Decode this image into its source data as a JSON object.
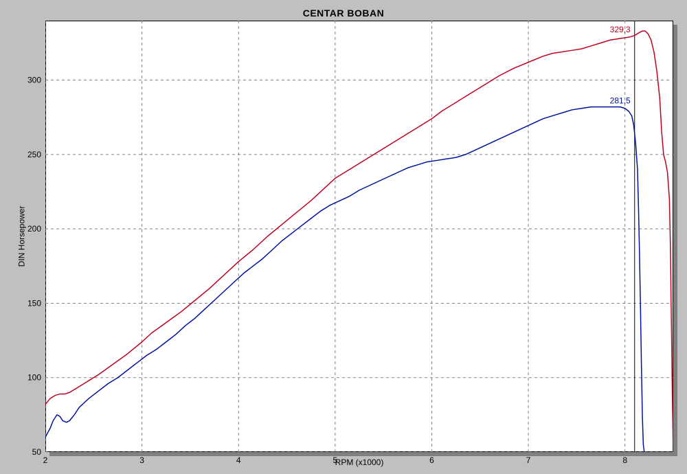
{
  "chart": {
    "type": "line",
    "title": "CENTAR BOBAN",
    "xlabel": "RPM (x1000)",
    "ylabel": "DIN Horsepower",
    "title_fontsize": 14,
    "label_fontsize": 12,
    "tick_fontsize": 12,
    "background_color": "#ffffff",
    "page_background": "#c0c0c0",
    "border_color": "#000000",
    "shadow_color": "#808080",
    "grid_color": "#808080",
    "grid_dash": "4 4",
    "minor_ticks": false,
    "xlim": [
      2,
      8.5
    ],
    "ylim": [
      50,
      340
    ],
    "xticks": [
      2,
      3,
      4,
      5,
      6,
      7,
      8
    ],
    "yticks": [
      50,
      100,
      150,
      200,
      250,
      300
    ],
    "marker_x": 8.1,
    "marker_color": "#000000",
    "series": [
      {
        "name": "run_red",
        "color": "#c00020",
        "line_width": 1.5,
        "peak_label": "329,3",
        "peak_label_color": "#c00020",
        "peak_label_xy": [
          7.95,
          329.3
        ],
        "data": [
          [
            2.0,
            82
          ],
          [
            2.05,
            86
          ],
          [
            2.1,
            88
          ],
          [
            2.15,
            89
          ],
          [
            2.2,
            89
          ],
          [
            2.25,
            90
          ],
          [
            2.35,
            94
          ],
          [
            2.45,
            98
          ],
          [
            2.55,
            102
          ],
          [
            2.7,
            109
          ],
          [
            2.85,
            116
          ],
          [
            3.0,
            124
          ],
          [
            3.1,
            130
          ],
          [
            3.25,
            137
          ],
          [
            3.4,
            144
          ],
          [
            3.55,
            152
          ],
          [
            3.7,
            160
          ],
          [
            3.85,
            169
          ],
          [
            4.0,
            178
          ],
          [
            4.15,
            186
          ],
          [
            4.3,
            195
          ],
          [
            4.45,
            203
          ],
          [
            4.6,
            211
          ],
          [
            4.75,
            219
          ],
          [
            4.9,
            228
          ],
          [
            5.0,
            234
          ],
          [
            5.1,
            238
          ],
          [
            5.25,
            244
          ],
          [
            5.4,
            250
          ],
          [
            5.55,
            256
          ],
          [
            5.7,
            262
          ],
          [
            5.85,
            268
          ],
          [
            6.0,
            274
          ],
          [
            6.1,
            279
          ],
          [
            6.25,
            285
          ],
          [
            6.4,
            291
          ],
          [
            6.55,
            297
          ],
          [
            6.7,
            303
          ],
          [
            6.85,
            308
          ],
          [
            7.0,
            312
          ],
          [
            7.15,
            316
          ],
          [
            7.25,
            318
          ],
          [
            7.35,
            319
          ],
          [
            7.45,
            320
          ],
          [
            7.55,
            321
          ],
          [
            7.65,
            323
          ],
          [
            7.75,
            325
          ],
          [
            7.85,
            327
          ],
          [
            7.95,
            328
          ],
          [
            8.05,
            329
          ],
          [
            8.1,
            330
          ],
          [
            8.15,
            332
          ],
          [
            8.18,
            333
          ],
          [
            8.21,
            333
          ],
          [
            8.24,
            331
          ],
          [
            8.27,
            327
          ],
          [
            8.3,
            319
          ],
          [
            8.33,
            306
          ],
          [
            8.36,
            288
          ],
          [
            8.38,
            265
          ],
          [
            8.4,
            250
          ],
          [
            8.42,
            245
          ],
          [
            8.44,
            238
          ],
          [
            8.46,
            220
          ],
          [
            8.47,
            190
          ],
          [
            8.48,
            140
          ],
          [
            8.49,
            90
          ],
          [
            8.5,
            50
          ]
        ]
      },
      {
        "name": "run_blue",
        "color": "#0010a0",
        "line_width": 1.5,
        "peak_label": "281,5",
        "peak_label_color": "#0010a0",
        "peak_label_xy": [
          7.95,
          281.5
        ],
        "data": [
          [
            2.0,
            60
          ],
          [
            2.05,
            66
          ],
          [
            2.08,
            71
          ],
          [
            2.12,
            75
          ],
          [
            2.15,
            74
          ],
          [
            2.18,
            71
          ],
          [
            2.22,
            70
          ],
          [
            2.25,
            71
          ],
          [
            2.3,
            75
          ],
          [
            2.35,
            80
          ],
          [
            2.45,
            86
          ],
          [
            2.55,
            91
          ],
          [
            2.65,
            96
          ],
          [
            2.75,
            100
          ],
          [
            2.85,
            105
          ],
          [
            2.95,
            110
          ],
          [
            3.05,
            115
          ],
          [
            3.15,
            119
          ],
          [
            3.25,
            124
          ],
          [
            3.35,
            129
          ],
          [
            3.45,
            135
          ],
          [
            3.55,
            140
          ],
          [
            3.65,
            146
          ],
          [
            3.75,
            152
          ],
          [
            3.85,
            158
          ],
          [
            3.95,
            164
          ],
          [
            4.05,
            170
          ],
          [
            4.15,
            175
          ],
          [
            4.25,
            180
          ],
          [
            4.35,
            186
          ],
          [
            4.45,
            192
          ],
          [
            4.55,
            197
          ],
          [
            4.65,
            202
          ],
          [
            4.75,
            207
          ],
          [
            4.85,
            212
          ],
          [
            4.95,
            216
          ],
          [
            5.05,
            219
          ],
          [
            5.15,
            222
          ],
          [
            5.25,
            226
          ],
          [
            5.35,
            229
          ],
          [
            5.45,
            232
          ],
          [
            5.55,
            235
          ],
          [
            5.65,
            238
          ],
          [
            5.75,
            241
          ],
          [
            5.85,
            243
          ],
          [
            5.95,
            245
          ],
          [
            6.05,
            246
          ],
          [
            6.15,
            247
          ],
          [
            6.25,
            248
          ],
          [
            6.35,
            250
          ],
          [
            6.45,
            253
          ],
          [
            6.55,
            256
          ],
          [
            6.65,
            259
          ],
          [
            6.75,
            262
          ],
          [
            6.85,
            265
          ],
          [
            6.95,
            268
          ],
          [
            7.05,
            271
          ],
          [
            7.15,
            274
          ],
          [
            7.25,
            276
          ],
          [
            7.35,
            278
          ],
          [
            7.45,
            280
          ],
          [
            7.55,
            281
          ],
          [
            7.65,
            282
          ],
          [
            7.75,
            282
          ],
          [
            7.85,
            282
          ],
          [
            7.95,
            282
          ],
          [
            8.0,
            281
          ],
          [
            8.04,
            279
          ],
          [
            8.07,
            276
          ],
          [
            8.09,
            270
          ],
          [
            8.11,
            258
          ],
          [
            8.13,
            240
          ],
          [
            8.14,
            215
          ],
          [
            8.15,
            185
          ],
          [
            8.16,
            150
          ],
          [
            8.17,
            110
          ],
          [
            8.18,
            75
          ],
          [
            8.19,
            55
          ],
          [
            8.2,
            50
          ]
        ]
      }
    ]
  }
}
